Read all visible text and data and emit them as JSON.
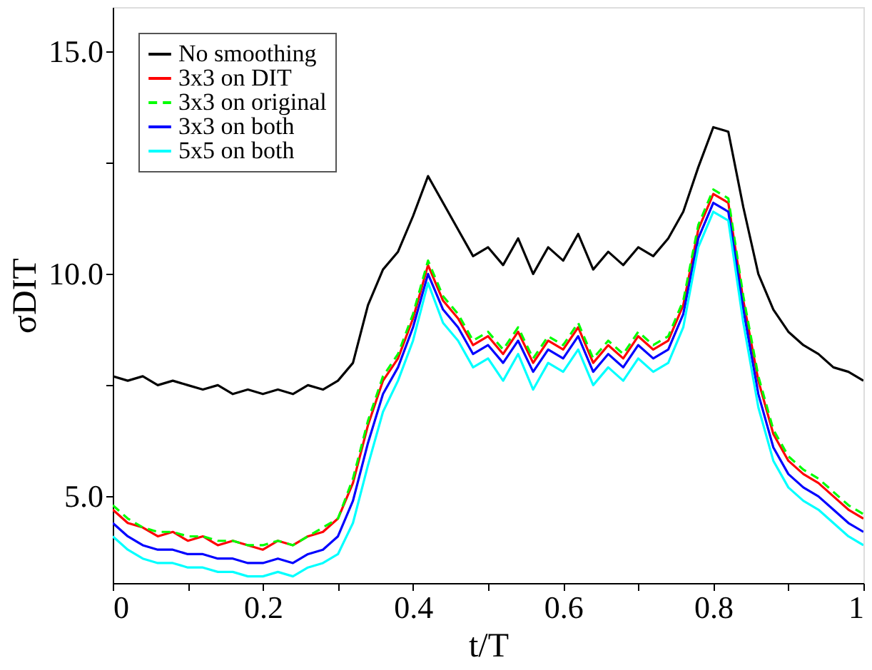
{
  "chart_data": {
    "type": "line",
    "xlabel": "t/T",
    "ylabel": "σDIT",
    "x": [
      0,
      0.02,
      0.04,
      0.06,
      0.08,
      0.1,
      0.12,
      0.14,
      0.16,
      0.18,
      0.2,
      0.22,
      0.24,
      0.26,
      0.28,
      0.3,
      0.32,
      0.34,
      0.36,
      0.38,
      0.4,
      0.42,
      0.44,
      0.46,
      0.48,
      0.5,
      0.52,
      0.54,
      0.56,
      0.58,
      0.6,
      0.62,
      0.64,
      0.66,
      0.68,
      0.7,
      0.72,
      0.74,
      0.76,
      0.78,
      0.8,
      0.82,
      0.84,
      0.86,
      0.88,
      0.9,
      0.92,
      0.94,
      0.96,
      0.98,
      1
    ],
    "series": [
      {
        "name": "No smoothing",
        "color": "#000000",
        "values": [
          7.7,
          7.6,
          7.7,
          7.5,
          7.6,
          7.5,
          7.4,
          7.5,
          7.3,
          7.4,
          7.3,
          7.4,
          7.3,
          7.5,
          7.4,
          7.6,
          8.0,
          9.3,
          10.1,
          10.5,
          11.3,
          12.2,
          11.6,
          11.0,
          10.4,
          10.6,
          10.2,
          10.8,
          10.0,
          10.6,
          10.3,
          10.9,
          10.1,
          10.5,
          10.2,
          10.6,
          10.4,
          10.8,
          11.4,
          12.4,
          13.3,
          13.2,
          11.5,
          10.0,
          9.2,
          8.7,
          8.4,
          8.2,
          7.9,
          7.8,
          7.6
        ]
      },
      {
        "name": "3x3 on DIT",
        "color": "#ff0000",
        "values": [
          4.7,
          4.4,
          4.3,
          4.1,
          4.2,
          4.0,
          4.1,
          3.9,
          4.0,
          3.9,
          3.8,
          4.0,
          3.9,
          4.1,
          4.2,
          4.5,
          5.3,
          6.6,
          7.6,
          8.1,
          9.0,
          10.2,
          9.4,
          9.0,
          8.4,
          8.6,
          8.2,
          8.7,
          8.0,
          8.5,
          8.3,
          8.8,
          8.0,
          8.4,
          8.1,
          8.6,
          8.3,
          8.5,
          9.3,
          11.0,
          11.8,
          11.6,
          9.4,
          7.6,
          6.4,
          5.8,
          5.5,
          5.3,
          5.0,
          4.7,
          4.5
        ]
      },
      {
        "name": "3x3 on original",
        "color": "#00ff00",
        "line_style": "dashed",
        "values": [
          4.8,
          4.5,
          4.3,
          4.2,
          4.2,
          4.1,
          4.1,
          4.0,
          4.0,
          3.9,
          3.9,
          4.0,
          3.9,
          4.1,
          4.3,
          4.5,
          5.4,
          6.7,
          7.7,
          8.2,
          9.1,
          10.3,
          9.5,
          9.1,
          8.5,
          8.7,
          8.3,
          8.8,
          8.1,
          8.6,
          8.4,
          8.9,
          8.1,
          8.5,
          8.2,
          8.7,
          8.4,
          8.6,
          9.4,
          11.1,
          11.9,
          11.7,
          9.5,
          7.7,
          6.5,
          5.9,
          5.6,
          5.4,
          5.1,
          4.8,
          4.6
        ]
      },
      {
        "name": "3x3 on both",
        "color": "#0000ff",
        "values": [
          4.4,
          4.1,
          3.9,
          3.8,
          3.8,
          3.7,
          3.7,
          3.6,
          3.6,
          3.5,
          3.5,
          3.6,
          3.5,
          3.7,
          3.8,
          4.1,
          4.9,
          6.2,
          7.3,
          7.9,
          8.8,
          10.0,
          9.2,
          8.8,
          8.2,
          8.4,
          8.0,
          8.5,
          7.8,
          8.3,
          8.1,
          8.6,
          7.8,
          8.2,
          7.9,
          8.4,
          8.1,
          8.3,
          9.1,
          10.8,
          11.6,
          11.4,
          9.2,
          7.3,
          6.1,
          5.5,
          5.2,
          5.0,
          4.7,
          4.4,
          4.2
        ]
      },
      {
        "name": "5x5 on both",
        "color": "#00ffff",
        "values": [
          4.1,
          3.8,
          3.6,
          3.5,
          3.5,
          3.4,
          3.4,
          3.3,
          3.3,
          3.2,
          3.2,
          3.3,
          3.2,
          3.4,
          3.5,
          3.7,
          4.4,
          5.7,
          6.9,
          7.6,
          8.5,
          9.8,
          8.9,
          8.5,
          7.9,
          8.1,
          7.6,
          8.2,
          7.4,
          8.0,
          7.8,
          8.3,
          7.5,
          7.9,
          7.6,
          8.1,
          7.8,
          8.0,
          8.8,
          10.6,
          11.4,
          11.2,
          8.9,
          7.0,
          5.8,
          5.2,
          4.9,
          4.7,
          4.4,
          4.1,
          3.9
        ]
      }
    ],
    "xlim": [
      0,
      1
    ],
    "xticks": [
      0,
      {
        "value": 0.1,
        "label": null
      },
      0.2,
      {
        "value": 0.3,
        "label": null
      },
      0.4,
      {
        "value": 0.5,
        "label": null
      },
      0.6,
      {
        "value": 0.7,
        "label": null
      },
      0.8,
      {
        "value": 0.9,
        "label": null
      },
      1
    ],
    "ylim": [
      3.05,
      16.0
    ],
    "yticks": [
      {
        "value": 5,
        "label": "5.0"
      },
      {
        "value": 7.5,
        "label": null
      },
      {
        "value": 10,
        "label": "10.0"
      },
      {
        "value": 12.5,
        "label": null
      },
      {
        "value": 15,
        "label": "15.0"
      }
    ],
    "legend": "top left",
    "grid": false,
    "line_style": "solid"
  }
}
